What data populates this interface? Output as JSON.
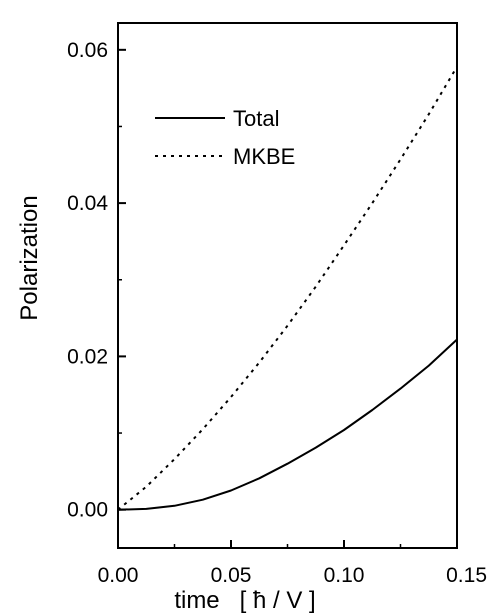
{
  "chart_data": {
    "type": "line",
    "title": "",
    "xlabel": "time   [ ħ / V ]",
    "ylabel": "Polarization",
    "xlim": [
      0.0,
      0.15
    ],
    "ylim": [
      -0.005,
      0.0635
    ],
    "x_ticks": [
      "0.00",
      "0.05",
      "0.10",
      "0.15"
    ],
    "y_ticks": [
      "0.00",
      "0.02",
      "0.04",
      "0.06"
    ],
    "grid": false,
    "legend_position": "top-left",
    "x": [
      0.0,
      0.0125,
      0.025,
      0.0375,
      0.05,
      0.0625,
      0.075,
      0.0875,
      0.1,
      0.1125,
      0.125,
      0.1375,
      0.15
    ],
    "series": [
      {
        "name": "Total",
        "style": "solid",
        "values": [
          0.0,
          0.0001,
          0.0005,
          0.0013,
          0.0025,
          0.0041,
          0.006,
          0.0081,
          0.0104,
          0.013,
          0.0158,
          0.0188,
          0.0222
        ]
      },
      {
        "name": "MKBE",
        "style": "dotted",
        "values": [
          0.0,
          0.003,
          0.0066,
          0.0105,
          0.0147,
          0.0192,
          0.024,
          0.0291,
          0.0345,
          0.04,
          0.0457,
          0.0516,
          0.0578
        ]
      }
    ]
  }
}
